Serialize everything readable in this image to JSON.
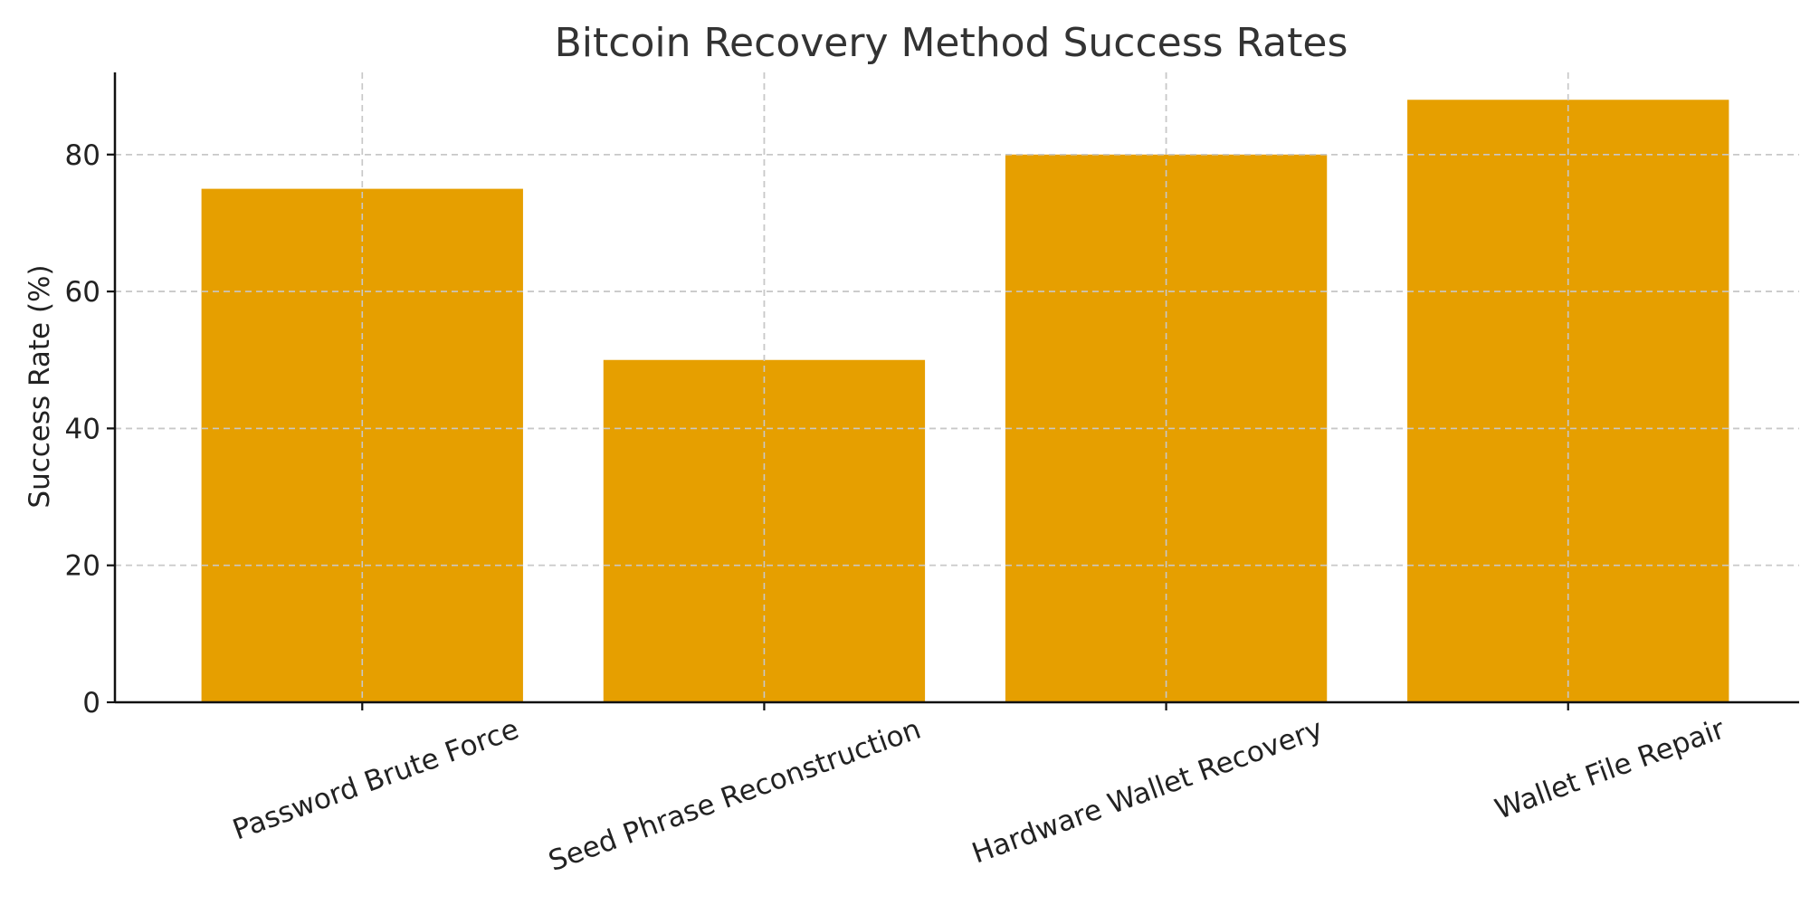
{
  "chart_data": {
    "type": "bar",
    "title": "Bitcoin Recovery Method Success Rates",
    "xlabel": "",
    "ylabel": "Success Rate (%)",
    "categories": [
      "Password Brute Force",
      "Seed Phrase Reconstruction",
      "Hardware Wallet Recovery",
      "Wallet File Repair"
    ],
    "values": [
      75,
      50,
      80,
      88
    ],
    "ylim": [
      0,
      92
    ],
    "yticks": [
      0,
      20,
      40,
      60,
      80
    ],
    "grid": true,
    "bar_color": "#e69f00",
    "x_tick_rotation": "rotated"
  }
}
